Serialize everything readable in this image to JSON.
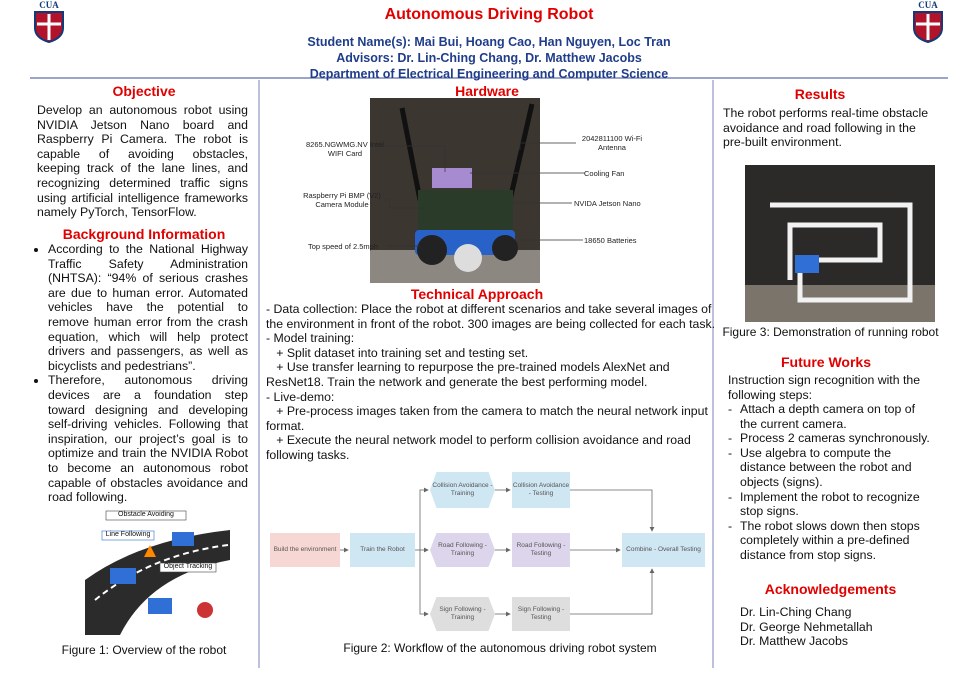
{
  "header": {
    "logo": "CUA",
    "title": "Autonomous Driving Robot",
    "students": "Student Name(s): Mai Bui, Hoang Cao, Han Nguyen, Loc Tran",
    "advisors": "Advisors: Dr. Lin-Ching Chang, Dr. Matthew Jacobs",
    "department": "Department of Electrical Engineering and Computer Science"
  },
  "objective": {
    "heading": "Objective",
    "text": "Develop an autonomous robot using NVIDIA Jetson Nano board and Raspberry Pi Camera. The robot is capable of avoiding obstacles, keeping track of the lane lines, and recognizing determined traffic signs using artificial intelligence frameworks namely PyTorch, TensorFlow."
  },
  "background": {
    "heading": "Background Information",
    "bullets": [
      "According to the National Highway Traffic Safety Administration (NHTSA): “94% of serious crashes are due to human error. Automated vehicles have the potential to remove human error from the crash equation, which will help protect drivers and passengers, as well as bicyclists and pedestrians”.",
      "Therefore, autonomous driving devices are a foundation step toward designing and developing self-driving vehicles. Following that inspiration, our project’s goal is to optimize and train the NVIDIA Robot to become an autonomous robot capable of obstacles avoidance and road following."
    ]
  },
  "figure1": {
    "labels": [
      "Obstacle Avoiding",
      "Line Following",
      "Object Tracking"
    ],
    "caption": "Figure 1: Overview of the robot"
  },
  "hardware": {
    "heading": "Hardware",
    "labels": [
      "8265.NGWMG.NV Intel WIFI Card",
      "Raspberry Pi BMP (V2) Camera Module",
      "Top speed of 2.5mph",
      "2042811100 Wi-Fi Antenna",
      "Cooling Fan",
      "NVIDA Jetson Nano",
      "18650 Batteries"
    ]
  },
  "technical": {
    "heading": "Technical Approach",
    "lines": [
      "- Data collection: Place the robot at different scenarios and take several images of",
      "the environment in front of the robot. 300 images are being collected for each task.",
      "- Model training:",
      "   + Split dataset into training set and testing set.",
      "   + Use transfer learning to repurpose the pre-trained models AlexNet and",
      "ResNet18. Train the network and generate the best performing model.",
      "- Live-demo:",
      "   + Pre-process images taken from the camera to match the neural network input",
      "format.",
      "   + Execute the neural network model to perform collision avoidance and road",
      "following tasks."
    ]
  },
  "workflow": {
    "nodes": [
      "Build the environment",
      "Train the Robot",
      "Collision Avoidance - Training",
      "Collision Avoidance - Testing",
      "Road Following - Training",
      "Road Following - Testing",
      "Combine - Overall Testing",
      "Sign Following - Training",
      "Sign Following - Testing"
    ],
    "caption": "Figure 2: Workflow of the autonomous driving robot system"
  },
  "results": {
    "heading": "Results",
    "text": "The robot performs real-time obstacle avoidance and road following in the pre-built environment.",
    "caption": "Figure 3: Demonstration of running robot"
  },
  "future": {
    "heading": "Future Works",
    "intro": "Instruction sign recognition with the following steps:",
    "bullets": [
      "Attach a depth camera on top of the current camera.",
      "Process 2 cameras synchronously.",
      "Use algebra to compute the distance between the robot and objects (signs).",
      "Implement the robot to recognize stop signs.",
      "The robot slows down then stops completely within a pre-defined distance from stop signs."
    ]
  },
  "acknowledgements": {
    "heading": "Acknowledgements",
    "names": [
      "Dr. Lin-Ching Chang",
      "Dr. George Nehmetallah",
      "Dr. Matthew Jacobs"
    ]
  }
}
